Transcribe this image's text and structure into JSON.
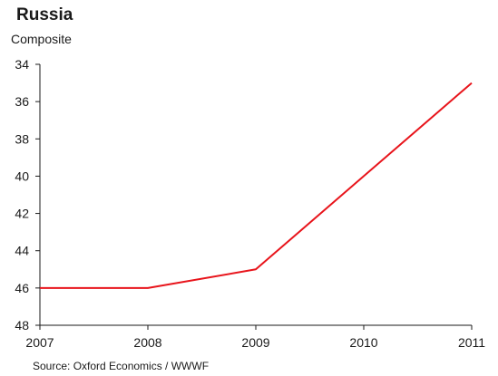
{
  "chart_data": {
    "type": "line",
    "title": "Russia",
    "subtitle": "Composite",
    "source": "Source: Oxford Economics / WWWF",
    "x": [
      "2007",
      "2008",
      "2009",
      "2010",
      "2011"
    ],
    "series": [
      {
        "values": [
          46,
          46,
          45,
          40,
          35
        ],
        "color": "#e8141b"
      }
    ],
    "ylim": [
      48,
      34
    ],
    "y_inverted": true,
    "y_ticks": [
      34,
      36,
      38,
      40,
      42,
      44,
      46,
      48
    ],
    "grid": false
  }
}
